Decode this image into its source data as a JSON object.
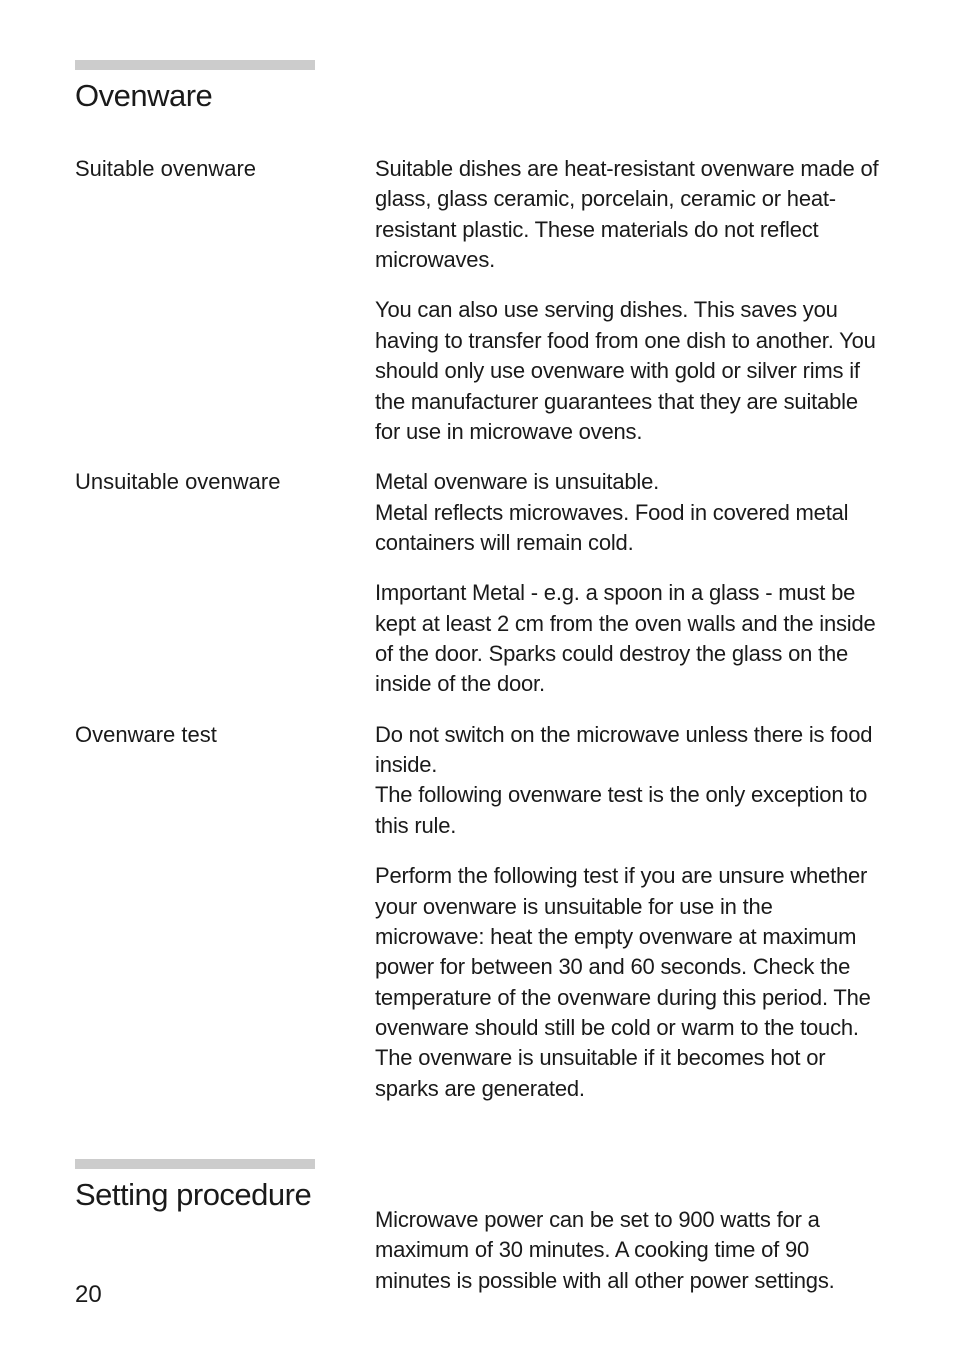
{
  "colors": {
    "bar_color": "#cccccc",
    "text_color": "#1a1a1a",
    "background": "#ffffff"
  },
  "typography": {
    "title_fontsize": 31,
    "label_fontsize": 22,
    "body_fontsize": 22,
    "pagenum_fontsize": 24,
    "body_fontweight": 300,
    "title_fontweight": 400
  },
  "section1": {
    "title": "Ovenware",
    "blocks": [
      {
        "label": "Suitable ovenware",
        "paragraphs": [
          "Suitable dishes are heat-resistant ovenware made of glass, glass ceramic, porcelain, ceramic or heat-resistant plastic. These materials do not reflect microwaves.",
          "You can also use serving dishes. This saves you having to transfer food from one dish to another. You should only use ovenware with gold or silver rims if the manufacturer guarantees that they are suitable for use in microwave ovens."
        ]
      },
      {
        "label": "Unsuitable ovenware",
        "paragraphs": [
          "Metal ovenware is unsuitable.\nMetal reflects microwaves. Food in covered metal containers will remain cold.",
          "Important Metal - e.g. a spoon in a glass - must be kept at least 2 cm from the oven walls and the inside of the door. Sparks could destroy the glass on the inside of the door."
        ]
      },
      {
        "label": "Ovenware test",
        "paragraphs": [
          "Do not switch on the microwave unless there is food inside.\nThe following ovenware test is the only exception to this rule.",
          "Perform the following test if you are unsure whether your ovenware is unsuitable for use in the microwave: heat the empty ovenware at maximum power for between 30 and 60 seconds. Check the temperature of the ovenware during this period. The ovenware should still be cold or warm to the touch. The ovenware is unsuitable if it becomes hot or sparks are generated."
        ]
      }
    ]
  },
  "section2": {
    "title": "Setting procedure",
    "paragraph": "Microwave power can be set to 900 watts for a maximum of 30 minutes. A cooking time of 90 minutes is possible with all other power settings."
  },
  "page_number": "20"
}
